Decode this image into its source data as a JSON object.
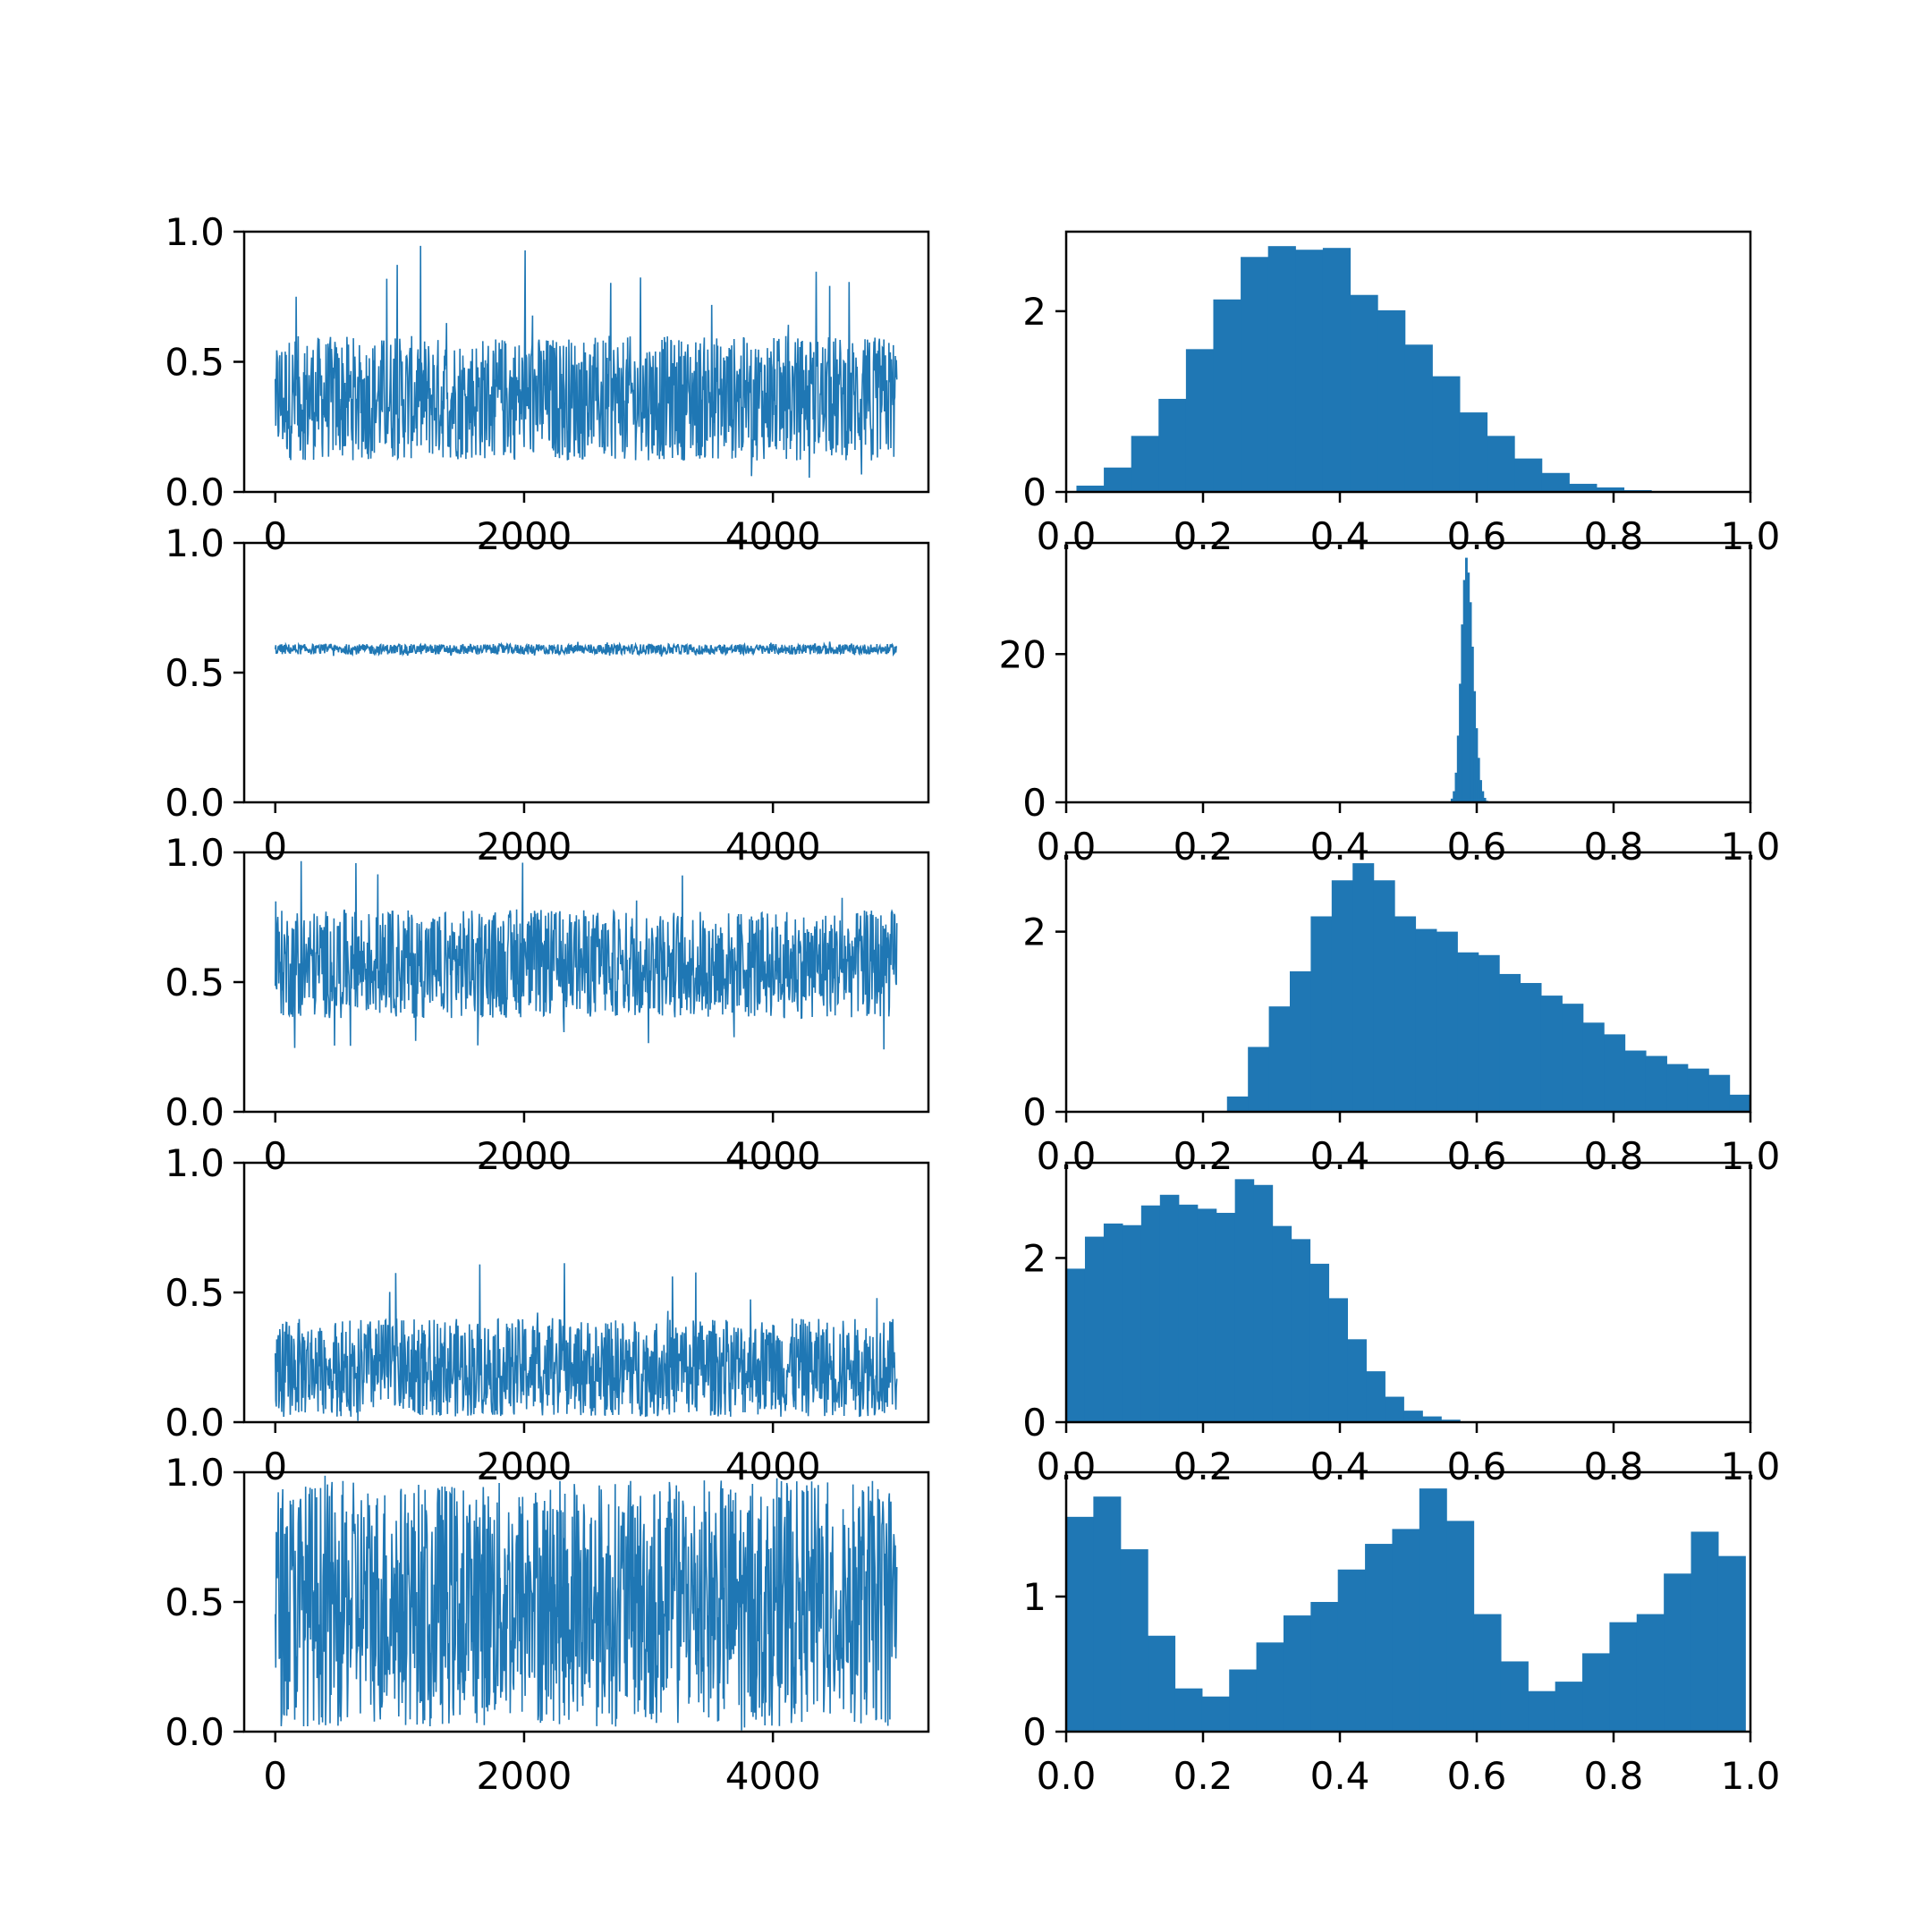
{
  "colors": {
    "series": "#1f77b4",
    "axes": "#000000",
    "background": "#ffffff"
  },
  "layout_note": "5 rows x 2 columns; left column = MCMC trace plots, right column = normalized histograms",
  "chart_data": [
    {
      "type": "line",
      "row": 0,
      "col": 0,
      "title": "",
      "xlabel": "",
      "ylabel": "",
      "xlim": [
        -250,
        5250
      ],
      "ylim": [
        0,
        1
      ],
      "xticks": [
        0,
        2000,
        4000
      ],
      "xticklabels": [
        "0",
        "2000",
        "4000"
      ],
      "yticks": [
        0,
        0.5,
        1
      ],
      "yticklabels": [
        "0.0",
        "0.5",
        "1.0"
      ],
      "series": [
        {
          "n": 5000,
          "trace": {
            "mean": 0.36,
            "low": 0.12,
            "high": 0.6,
            "spike_max": 0.97,
            "dip_min": 0.03
          }
        }
      ]
    },
    {
      "type": "bar",
      "row": 0,
      "col": 1,
      "title": "",
      "xlabel": "",
      "ylabel": "",
      "xlim": [
        0,
        1
      ],
      "ylim": [
        0,
        2.88
      ],
      "xticks": [
        0,
        0.2,
        0.4,
        0.6,
        0.8,
        1
      ],
      "xticklabels": [
        "0.0",
        "0.2",
        "0.4",
        "0.6",
        "0.8",
        "1.0"
      ],
      "yticks": [
        0,
        2
      ],
      "yticklabels": [
        "0",
        "2"
      ],
      "bins": {
        "start": 0.015,
        "width": 0.04
      },
      "values": [
        0.07,
        0.27,
        0.62,
        1.03,
        1.58,
        2.13,
        2.6,
        2.72,
        2.68,
        2.7,
        2.18,
        2.01,
        1.63,
        1.28,
        0.88,
        0.62,
        0.37,
        0.21,
        0.09,
        0.05,
        0.02,
        0.01
      ]
    },
    {
      "type": "line",
      "row": 1,
      "col": 0,
      "title": "",
      "xlabel": "",
      "ylabel": "",
      "xlim": [
        -250,
        5250
      ],
      "ylim": [
        0,
        1
      ],
      "xticks": [
        0,
        2000,
        4000
      ],
      "xticklabels": [
        "0",
        "2000",
        "4000"
      ],
      "yticks": [
        0,
        0.5,
        1
      ],
      "yticklabels": [
        "0.0",
        "0.5",
        "1.0"
      ],
      "series": [
        {
          "n": 5000,
          "trace": {
            "mean": 0.59,
            "low": 0.57,
            "high": 0.61,
            "spike_max": 0.62,
            "dip_min": 0.56
          }
        }
      ]
    },
    {
      "type": "bar",
      "row": 1,
      "col": 1,
      "title": "",
      "xlabel": "",
      "ylabel": "",
      "xlim": [
        0,
        1
      ],
      "ylim": [
        0,
        35
      ],
      "xticks": [
        0,
        0.2,
        0.4,
        0.6,
        0.8,
        1
      ],
      "xticklabels": [
        "0.0",
        "0.2",
        "0.4",
        "0.6",
        "0.8",
        "1.0"
      ],
      "yticks": [
        0,
        20
      ],
      "yticklabels": [
        "0",
        "20"
      ],
      "bins": {
        "start": 0.562,
        "width": 0.003
      },
      "values": [
        0.5,
        1.5,
        4,
        9,
        16,
        24,
        30,
        33,
        31,
        27,
        21,
        15,
        10,
        6,
        3,
        1.5,
        0.6,
        0.2
      ]
    },
    {
      "type": "line",
      "row": 2,
      "col": 0,
      "title": "",
      "xlabel": "",
      "ylabel": "",
      "xlim": [
        -250,
        5250
      ],
      "ylim": [
        0,
        1
      ],
      "xticks": [
        0,
        2000,
        4000
      ],
      "xticklabels": [
        "0",
        "2000",
        "4000"
      ],
      "yticks": [
        0,
        0.5,
        1
      ],
      "yticklabels": [
        "0.0",
        "0.5",
        "1.0"
      ],
      "series": [
        {
          "n": 5000,
          "trace": {
            "mean": 0.55,
            "low": 0.36,
            "high": 0.78,
            "spike_max": 0.99,
            "dip_min": 0.24
          }
        }
      ]
    },
    {
      "type": "bar",
      "row": 2,
      "col": 1,
      "title": "",
      "xlabel": "",
      "ylabel": "",
      "xlim": [
        0,
        1
      ],
      "ylim": [
        0,
        2.88
      ],
      "xticks": [
        0,
        0.2,
        0.4,
        0.6,
        0.8,
        1
      ],
      "xticklabels": [
        "0.0",
        "0.2",
        "0.4",
        "0.6",
        "0.8",
        "1.0"
      ],
      "yticks": [
        0,
        2
      ],
      "yticklabels": [
        "0",
        "2"
      ],
      "bins": {
        "start": 0.235,
        "width": 0.0306
      },
      "values": [
        0.17,
        0.72,
        1.17,
        1.56,
        2.17,
        2.57,
        2.76,
        2.57,
        2.17,
        2.03,
        2.0,
        1.77,
        1.74,
        1.53,
        1.43,
        1.29,
        1.2,
        0.99,
        0.86,
        0.68,
        0.62,
        0.53,
        0.48,
        0.41,
        0.19,
        0.15
      ]
    },
    {
      "type": "line",
      "row": 3,
      "col": 0,
      "title": "",
      "xlabel": "",
      "ylabel": "",
      "xlim": [
        -250,
        5250
      ],
      "ylim": [
        0,
        1
      ],
      "xticks": [
        0,
        2000,
        4000
      ],
      "xticklabels": [
        "0",
        "2000",
        "4000"
      ],
      "yticks": [
        0,
        0.5,
        1
      ],
      "yticklabels": [
        "0.0",
        "0.5",
        "1.0"
      ],
      "series": [
        {
          "n": 5000,
          "trace": {
            "mean": 0.18,
            "low": 0.02,
            "high": 0.4,
            "spike_max": 0.62,
            "dip_min": 0.0
          }
        }
      ]
    },
    {
      "type": "bar",
      "row": 3,
      "col": 1,
      "title": "",
      "xlabel": "",
      "ylabel": "",
      "xlim": [
        0,
        1
      ],
      "ylim": [
        0,
        3.16
      ],
      "xticks": [
        0,
        0.2,
        0.4,
        0.6,
        0.8,
        1
      ],
      "xticklabels": [
        "0.0",
        "0.2",
        "0.4",
        "0.6",
        "0.8",
        "1.0"
      ],
      "yticks": [
        0,
        2
      ],
      "yticklabels": [
        "0",
        "2"
      ],
      "bins": {
        "start": 0.0,
        "width": 0.0274
      },
      "values": [
        1.87,
        2.26,
        2.42,
        2.4,
        2.64,
        2.77,
        2.65,
        2.6,
        2.55,
        2.96,
        2.89,
        2.39,
        2.23,
        1.93,
        1.51,
        1.01,
        0.62,
        0.31,
        0.14,
        0.07,
        0.03
      ]
    },
    {
      "type": "line",
      "row": 4,
      "col": 0,
      "title": "",
      "xlabel": "",
      "ylabel": "",
      "xlim": [
        -250,
        5250
      ],
      "ylim": [
        0,
        1
      ],
      "xticks": [
        0,
        2000,
        4000
      ],
      "xticklabels": [
        "0",
        "2000",
        "4000"
      ],
      "yticks": [
        0,
        0.5,
        1
      ],
      "yticklabels": [
        "0.0",
        "0.5",
        "1.0"
      ],
      "series": [
        {
          "n": 5000,
          "trace": {
            "mean": 0.5,
            "low": 0.02,
            "high": 0.97,
            "spike_max": 0.99,
            "dip_min": 0.0
          }
        }
      ]
    },
    {
      "type": "bar",
      "row": 4,
      "col": 1,
      "title": "",
      "xlabel": "",
      "ylabel": "",
      "xlim": [
        0,
        1
      ],
      "ylim": [
        0,
        1.92
      ],
      "xticks": [
        0,
        0.2,
        0.4,
        0.6,
        0.8,
        1
      ],
      "xticklabels": [
        "0.0",
        "0.2",
        "0.4",
        "0.6",
        "0.8",
        "1.0"
      ],
      "yticks": [
        0,
        1
      ],
      "yticklabels": [
        "0",
        "1"
      ],
      "bins": {
        "start": 0.0,
        "width": 0.0397
      },
      "values": [
        1.59,
        1.74,
        1.35,
        0.71,
        0.32,
        0.26,
        0.46,
        0.66,
        0.86,
        0.96,
        1.2,
        1.39,
        1.5,
        1.8,
        1.56,
        0.87,
        0.52,
        0.3,
        0.37,
        0.58,
        0.81,
        0.87,
        1.17,
        1.48,
        1.3
      ]
    }
  ]
}
